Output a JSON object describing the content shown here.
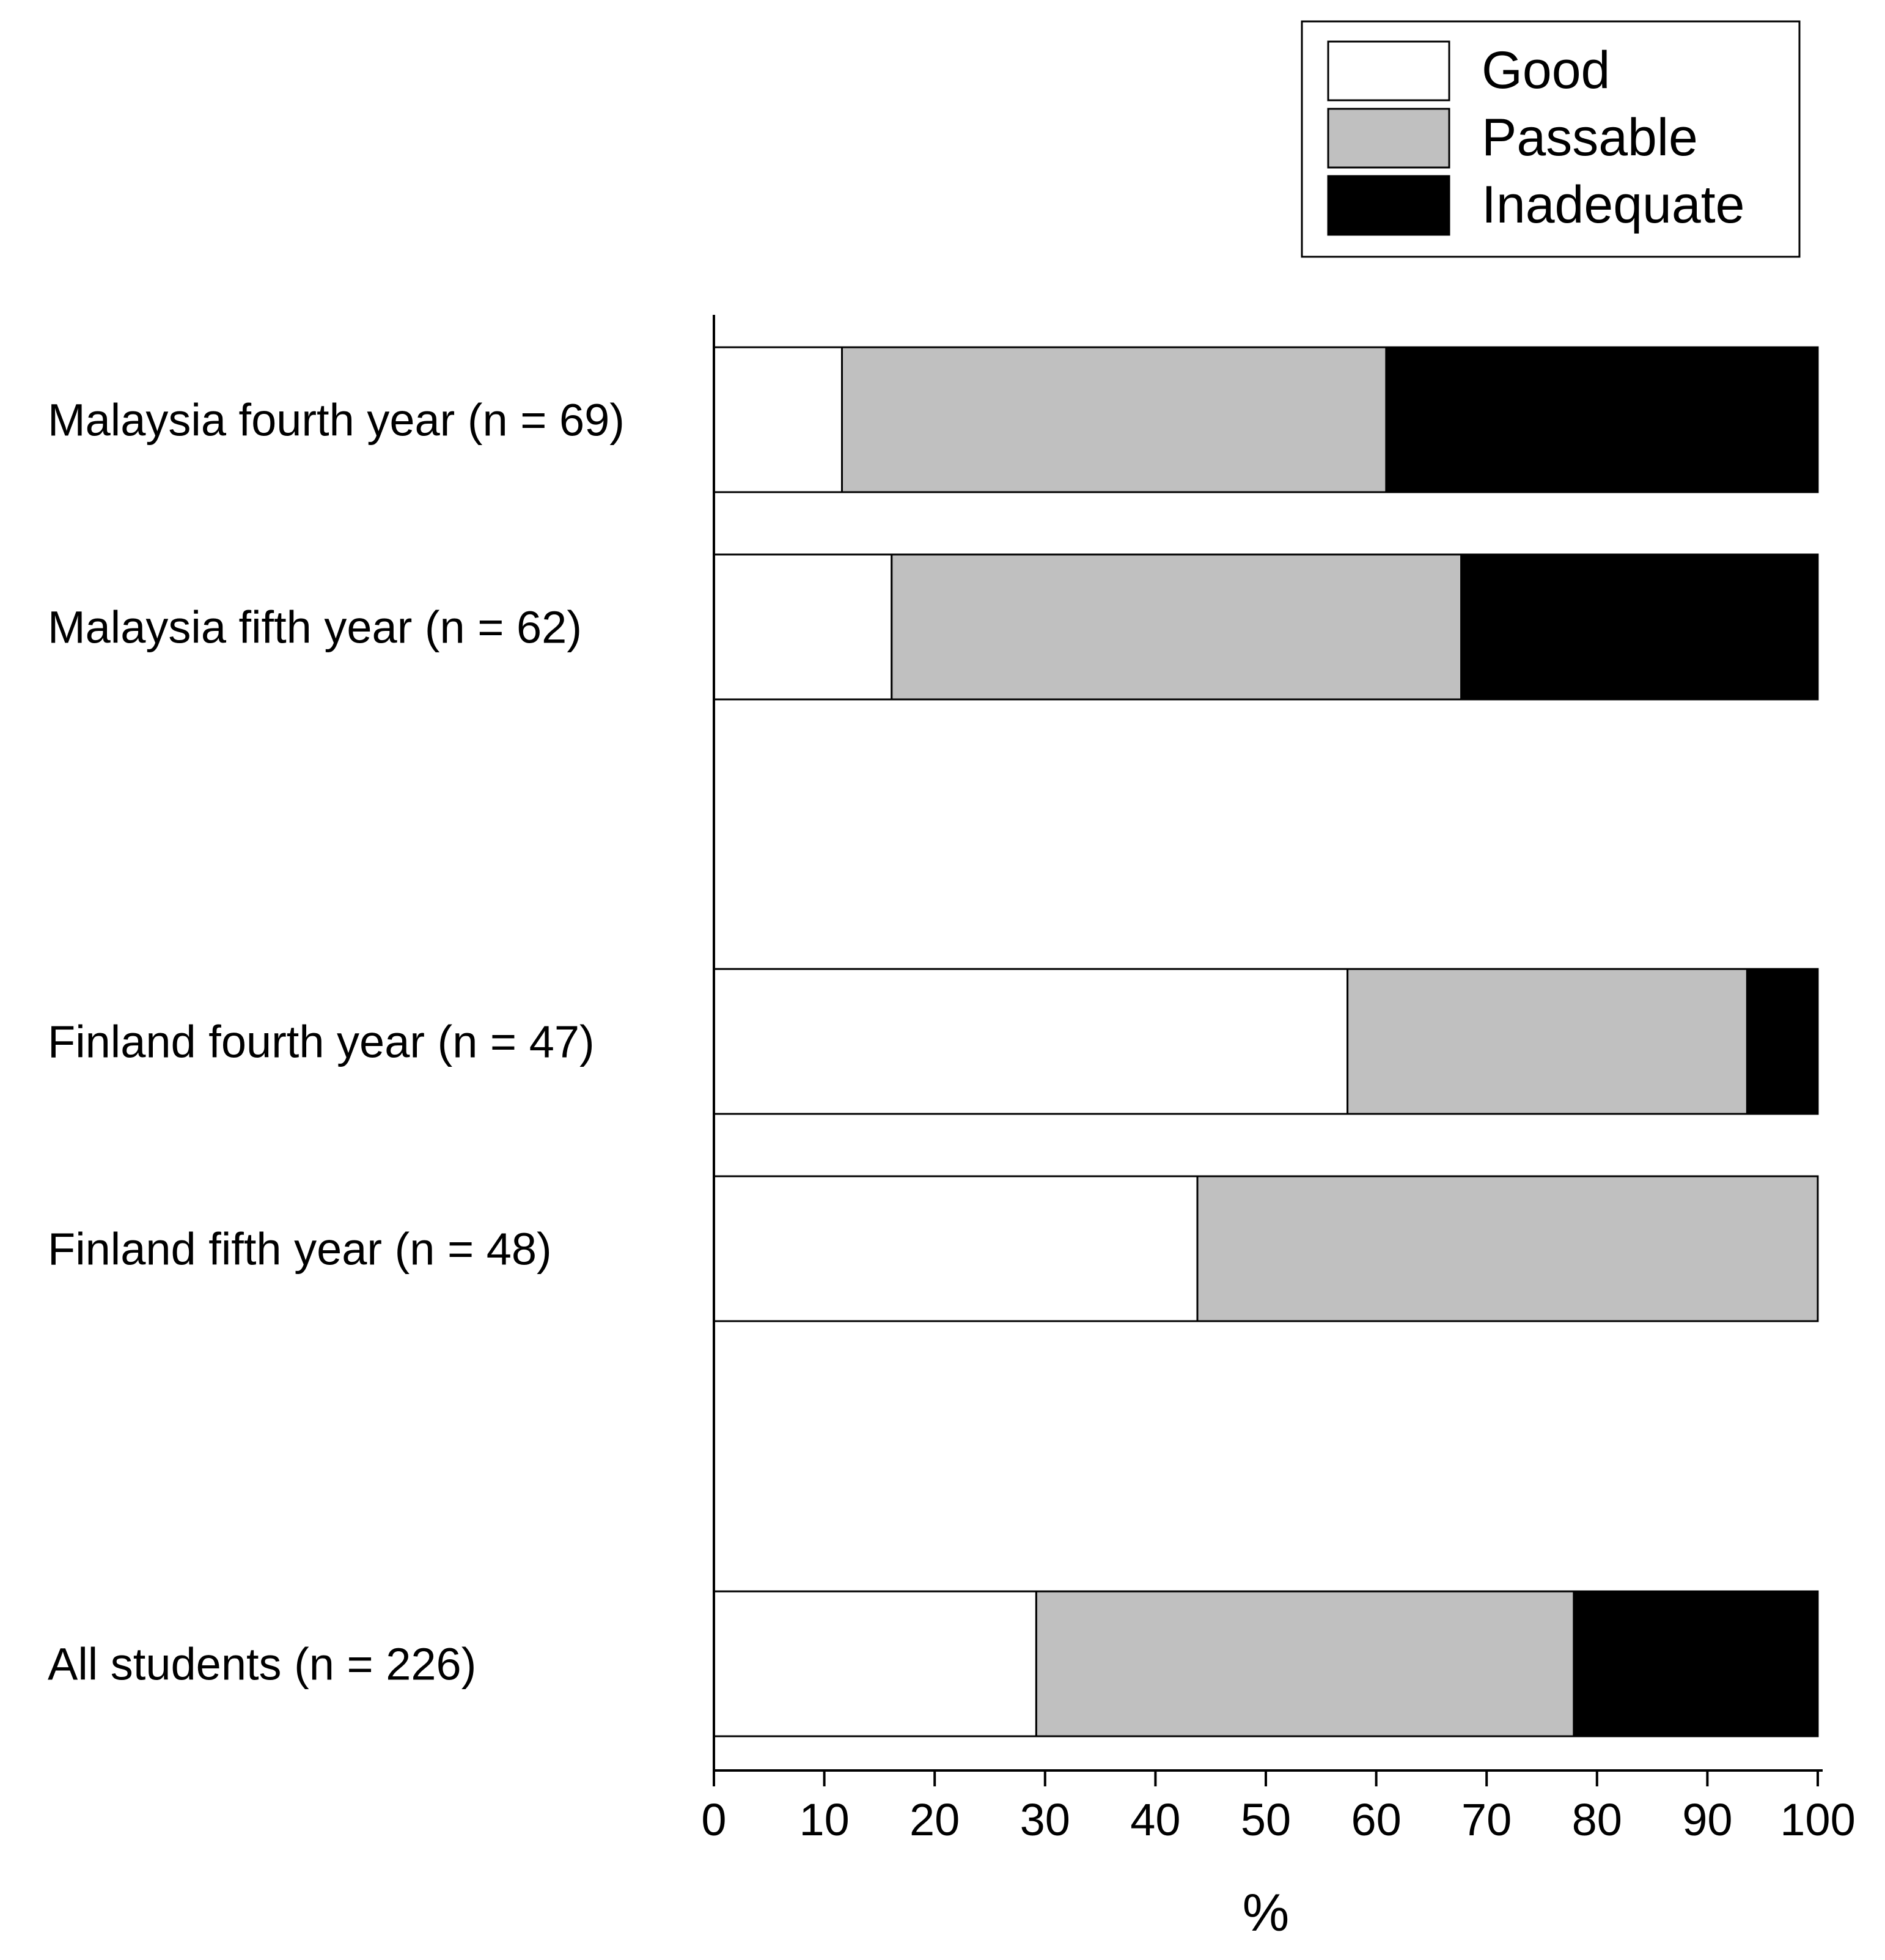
{
  "chart_data": {
    "type": "bar",
    "orientation": "horizontal",
    "stacked": true,
    "title": "",
    "xlabel": "%",
    "ylabel": "",
    "xlim": [
      0,
      100
    ],
    "xticks": [
      0,
      10,
      20,
      30,
      40,
      50,
      60,
      70,
      80,
      90,
      100
    ],
    "grid": false,
    "legend_position": "top-right",
    "categories": [
      "Malaysia fourth year (n = 69)",
      "Malaysia fifth year (n = 62)",
      "Finland fourth year (n = 47)",
      "Finland fifth year (n = 48)",
      "All students  (n = 226)"
    ],
    "series": [
      {
        "name": "Good",
        "color": "#ffffff",
        "values": [
          11.6,
          16.1,
          57.4,
          43.8,
          29.2
        ]
      },
      {
        "name": "Passable",
        "color": "#c0c0c0",
        "values": [
          49.3,
          51.6,
          36.2,
          56.2,
          48.7
        ]
      },
      {
        "name": "Inadequate",
        "color": "#000000",
        "values": [
          39.1,
          32.3,
          6.4,
          0.0,
          22.1
        ]
      }
    ]
  }
}
